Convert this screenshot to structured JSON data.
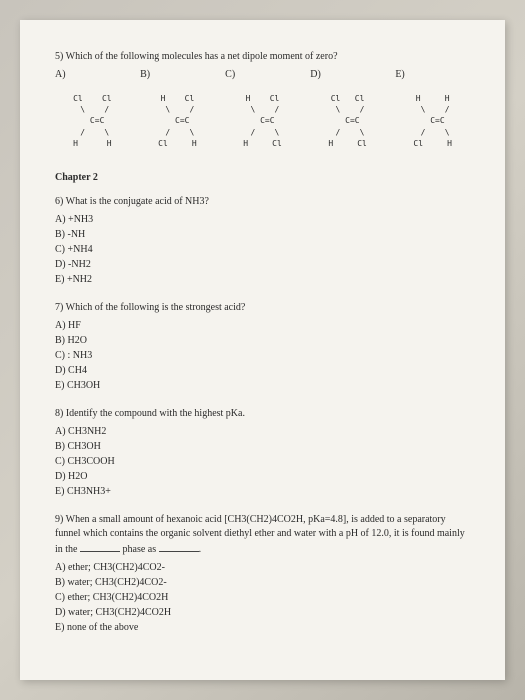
{
  "q5": {
    "text": "5) Which of the following molecules has a net dipole moment of zero?",
    "labels": [
      "A)",
      "B)",
      "C)",
      "D)",
      "E)"
    ],
    "mols": [
      {
        "t": "Cl    Cl\n \\    /\n  C=C\n /    \\\nH      H"
      },
      {
        "t": "H    Cl\n \\    /\n  C=C\n /    \\\nCl     H"
      },
      {
        "t": "H    Cl\n \\    /\n  C=C\n /    \\\nH     Cl"
      },
      {
        "t": "Cl   Cl\n \\    /\n  C=C\n /    \\\nH     Cl"
      },
      {
        "t": "H     H\n \\    /\n  C=C\n /    \\\nCl     H"
      }
    ]
  },
  "chapter": "Chapter 2",
  "q6": {
    "text": "6) What is the conjugate acid of NH3?",
    "opts": [
      "A) +NH3",
      "B) -NH",
      "C) +NH4",
      "D) -NH2",
      "E) +NH2"
    ]
  },
  "q7": {
    "text": "7) Which of the following is the strongest acid?",
    "opts": [
      "A) HF",
      "B) H2O",
      "C) : NH3",
      "D) CH4",
      "E) CH3OH"
    ]
  },
  "q8": {
    "text": "8) Identify the compound with the highest pKa.",
    "opts": [
      "A) CH3NH2",
      "B) CH3OH",
      "C) CH3COOH",
      "D) H2O",
      "E) CH3NH3+"
    ]
  },
  "q9": {
    "text_pre": "9) When a small amount of hexanoic acid [CH3(CH2)4CO2H, pKa=4.8], is added to a separatory funnel which contains the organic solvent diethyl ether and water with a pH of 12.0, it is found mainly in the ",
    "text_mid": " phase as ",
    "text_post": ".",
    "opts": [
      "A) ether; CH3(CH2)4CO2-",
      "B) water; CH3(CH2)4CO2-",
      "C) ether; CH3(CH2)4CO2H",
      "D) water; CH3(CH2)4CO2H",
      "E) none of the above"
    ]
  }
}
